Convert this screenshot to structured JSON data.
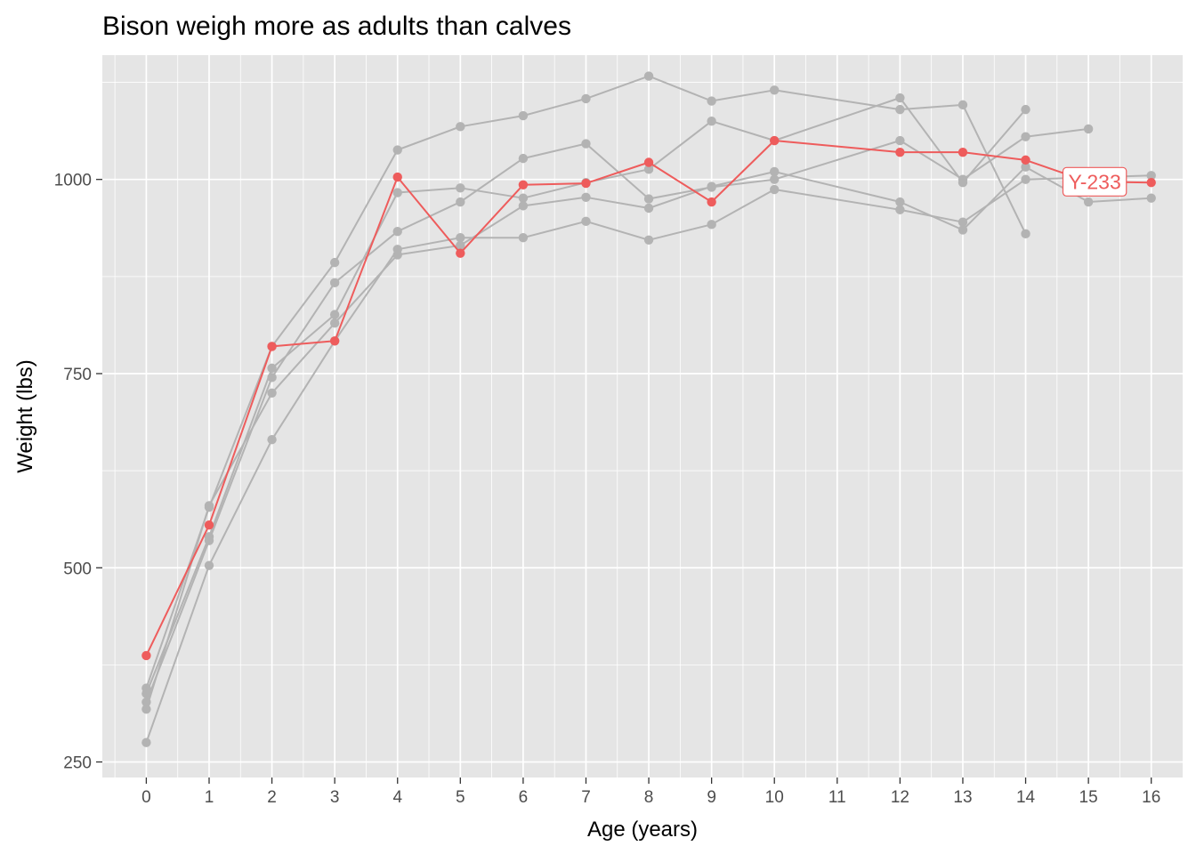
{
  "chart_data": {
    "type": "line",
    "title": "Bison weigh more as adults than calves",
    "xlabel": "Age (years)",
    "ylabel": "Weight (lbs)",
    "xlim": [
      -0.7,
      16.5
    ],
    "ylim": [
      230,
      1160
    ],
    "x_ticks": [
      0,
      1,
      2,
      3,
      4,
      5,
      6,
      7,
      8,
      9,
      10,
      11,
      12,
      13,
      14,
      15,
      16
    ],
    "y_ticks": [
      250,
      500,
      750,
      1000
    ],
    "grid": true,
    "legend": "none",
    "colors": {
      "panel": "#e5e5e5",
      "grid": "#ffffff",
      "background_series": "#b3b3b3",
      "highlight": "#ee5c5c",
      "tick": "#333333",
      "tick_label": "#4d4d4d"
    },
    "highlight_label": "Y-233",
    "highlight_series": {
      "name": "Y-233",
      "points": [
        [
          0,
          387
        ],
        [
          1,
          555
        ],
        [
          2,
          785
        ],
        [
          3,
          792
        ],
        [
          4,
          1003
        ],
        [
          5,
          905
        ],
        [
          6,
          993
        ],
        [
          7,
          995
        ],
        [
          8,
          1022
        ],
        [
          9,
          971
        ],
        [
          10,
          1050
        ],
        [
          12,
          1035
        ],
        [
          13,
          1035
        ],
        [
          14,
          1025
        ],
        [
          15,
          997
        ],
        [
          16,
          996
        ]
      ]
    },
    "series": [
      {
        "points": [
          [
            0,
            345
          ],
          [
            1,
            578
          ],
          [
            2,
            785
          ],
          [
            3,
            893
          ],
          [
            4,
            1038
          ],
          [
            5,
            1068
          ],
          [
            6,
            1082
          ],
          [
            7,
            1104
          ],
          [
            8,
            1133
          ],
          [
            9,
            1101
          ],
          [
            10,
            1115
          ],
          [
            12,
            1090
          ],
          [
            13,
            1096
          ],
          [
            14,
            930
          ]
        ]
      },
      {
        "points": [
          [
            0,
            338
          ],
          [
            1,
            540
          ],
          [
            2,
            757
          ],
          [
            3,
            826
          ],
          [
            4,
            983
          ],
          [
            5,
            989
          ],
          [
            6,
            976
          ],
          [
            7,
            996
          ],
          [
            8,
            1013
          ],
          [
            9,
            1075
          ],
          [
            10,
            1050
          ],
          [
            12,
            1105
          ],
          [
            13,
            996
          ],
          [
            14,
            1090
          ]
        ]
      },
      {
        "points": [
          [
            0,
            327
          ],
          [
            1,
            535
          ],
          [
            2,
            745
          ],
          [
            3,
            867
          ],
          [
            4,
            933
          ],
          [
            5,
            971
          ],
          [
            6,
            1027
          ],
          [
            7,
            1046
          ],
          [
            8,
            975
          ],
          [
            9,
            990
          ],
          [
            10,
            1000
          ],
          [
            12,
            1050
          ],
          [
            13,
            1000
          ],
          [
            14,
            1055
          ],
          [
            15,
            1065
          ]
        ]
      },
      {
        "points": [
          [
            0,
            318
          ],
          [
            1,
            580
          ],
          [
            2,
            725
          ],
          [
            3,
            815
          ],
          [
            4,
            903
          ],
          [
            5,
            915
          ],
          [
            6,
            966
          ],
          [
            7,
            977
          ],
          [
            8,
            963
          ],
          [
            9,
            991
          ],
          [
            10,
            1010
          ],
          [
            12,
            971
          ],
          [
            13,
            935
          ],
          [
            14,
            1016
          ],
          [
            15,
            971
          ],
          [
            16,
            976
          ]
        ]
      },
      {
        "points": [
          [
            0,
            275
          ],
          [
            1,
            503
          ],
          [
            2,
            665
          ],
          [
            3,
            792
          ],
          [
            4,
            910
          ],
          [
            5,
            925
          ],
          [
            6,
            925
          ],
          [
            7,
            946
          ],
          [
            8,
            922
          ],
          [
            9,
            942
          ],
          [
            10,
            987
          ],
          [
            12,
            961
          ],
          [
            13,
            945
          ],
          [
            14,
            1000
          ],
          [
            16,
            1005
          ]
        ]
      }
    ]
  }
}
